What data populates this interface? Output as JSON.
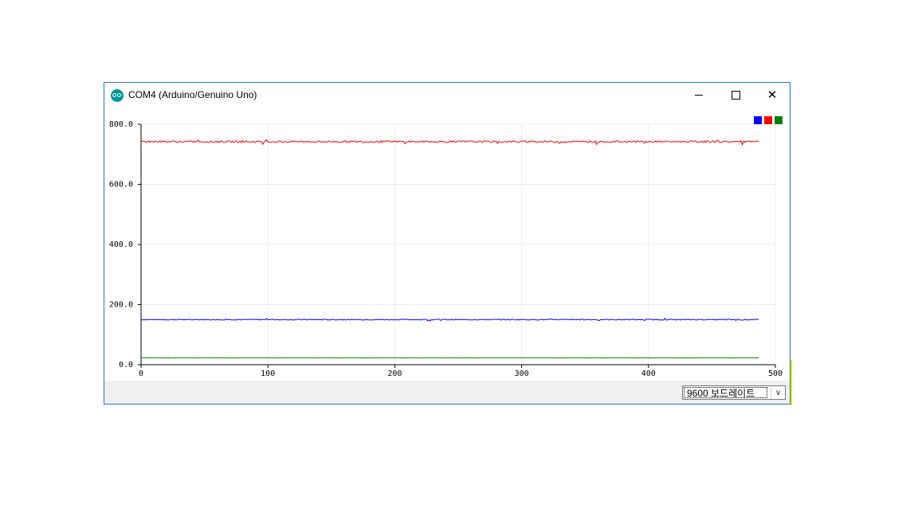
{
  "window": {
    "title": "COM4 (Arduino/Genuino Uno)",
    "icon": "arduino-icon",
    "border_color": "#1e78c8"
  },
  "titlebar_buttons": {
    "minimize_icon": "minimize-icon",
    "maximize_icon": "maximize-icon",
    "close_icon": "close-icon",
    "close_glyph": "✕"
  },
  "footer": {
    "baud_rate_value": "9600 보드레이트",
    "dropdown_icon": "chevron-down-icon"
  },
  "chart_data": {
    "type": "line",
    "xlim": [
      0,
      500
    ],
    "ylim": [
      0,
      800
    ],
    "x_ticks": [
      "0",
      "100",
      "200",
      "300",
      "400",
      "500"
    ],
    "y_ticks": [
      "0.0",
      "200.0",
      "400.0",
      "600.0",
      "800.0"
    ],
    "grid": true,
    "legend_placement": "top-right",
    "legend_colors": [
      "#0000ff",
      "#ff0000",
      "#008000"
    ],
    "series": [
      {
        "color": "#0000ff",
        "x_start": 0,
        "x_end": 487,
        "mean": 150,
        "noise": 1.5
      },
      {
        "color": "#ff0000",
        "x_start": 0,
        "x_end": 487,
        "mean": 742,
        "noise": 3
      },
      {
        "color": "#008000",
        "x_start": 0,
        "x_end": 487,
        "mean": 23,
        "noise": 0.4
      }
    ]
  }
}
